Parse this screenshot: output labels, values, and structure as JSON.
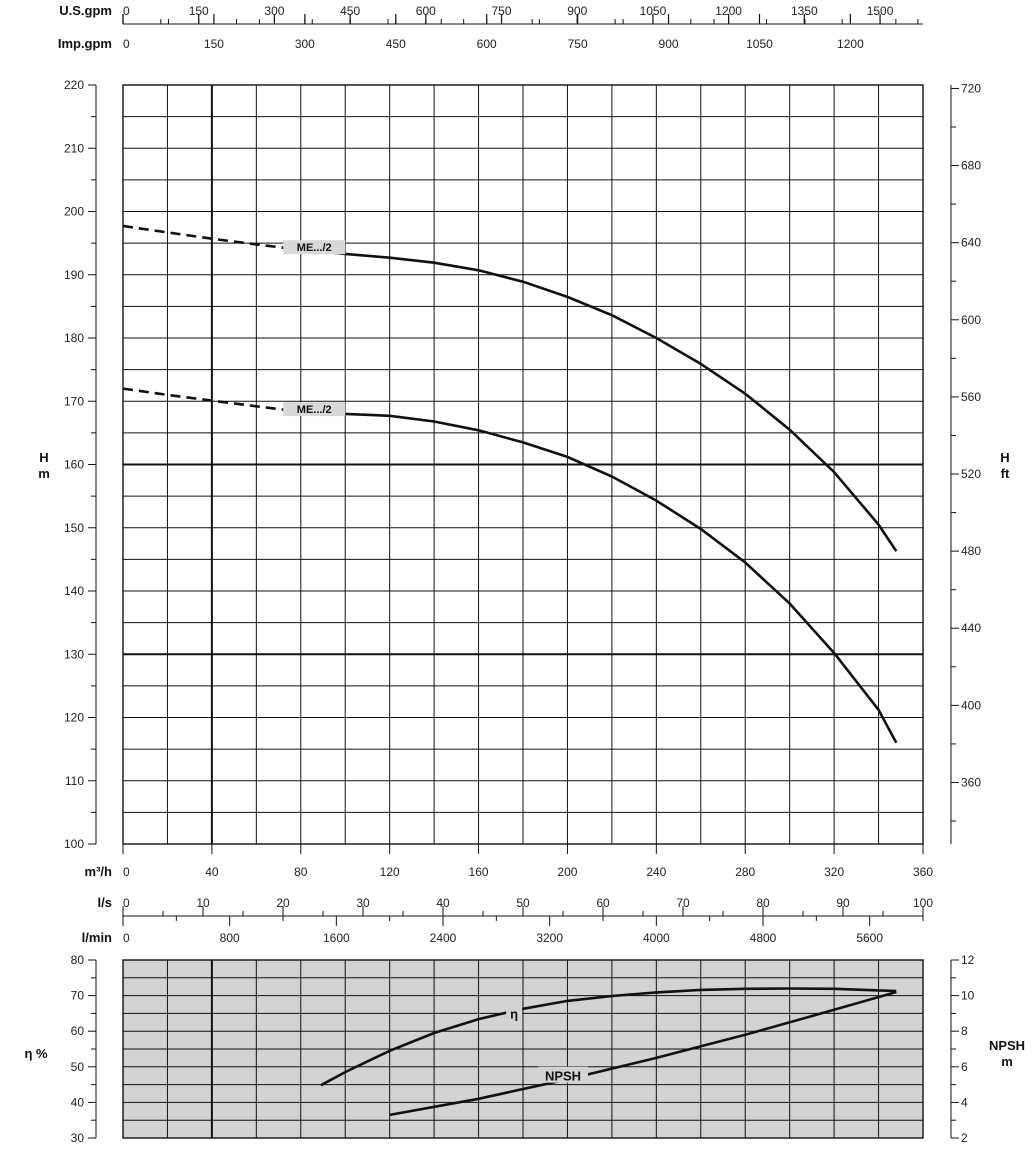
{
  "chart_data": {
    "type": "line",
    "top_axes": [
      {
        "label": "U.S.gpm",
        "ticks": [
          "0",
          "150",
          "300",
          "450",
          "600",
          "750",
          "900",
          "1050",
          "1200",
          "1350",
          "1500"
        ],
        "values": [
          0,
          150,
          300,
          450,
          600,
          750,
          900,
          1050,
          1200,
          1350,
          1500
        ]
      },
      {
        "label": "Imp.gpm",
        "ticks": [
          "0",
          "150",
          "300",
          "450",
          "600",
          "750",
          "900",
          "1050",
          "1200"
        ],
        "values": [
          0,
          150,
          300,
          450,
          600,
          750,
          900,
          1050,
          1200
        ]
      }
    ],
    "x_main": {
      "label": "m³/h",
      "ticks": [
        "0",
        "40",
        "80",
        "120",
        "160",
        "200",
        "240",
        "280",
        "320",
        "360"
      ],
      "values": [
        0,
        40,
        80,
        120,
        160,
        200,
        240,
        280,
        320,
        360
      ],
      "range": [
        0,
        360
      ]
    },
    "x_ls": {
      "label": "l/s",
      "ticks": [
        "0",
        "10",
        "20",
        "30",
        "40",
        "50",
        "60",
        "70",
        "80",
        "90",
        "100"
      ],
      "values": [
        0,
        10,
        20,
        30,
        40,
        50,
        60,
        70,
        80,
        90,
        100
      ]
    },
    "x_lmin": {
      "label": "l/min",
      "ticks": [
        "0",
        "800",
        "1600",
        "2400",
        "3200",
        "4000",
        "4800",
        "5600"
      ],
      "values": [
        0,
        800,
        1600,
        2400,
        3200,
        4000,
        4800,
        5600
      ]
    },
    "head": {
      "ylabel_left": [
        "H",
        "m"
      ],
      "ylabel_right": [
        "H",
        "ft"
      ],
      "ylim": [
        100,
        220
      ],
      "yticks": [
        "100",
        "110",
        "120",
        "130",
        "140",
        "150",
        "160",
        "170",
        "180",
        "190",
        "200",
        "210",
        "220"
      ],
      "yticks_values": [
        100,
        110,
        120,
        130,
        140,
        150,
        160,
        170,
        180,
        190,
        200,
        210,
        220
      ],
      "ft_ticks": [
        "360",
        "400",
        "440",
        "480",
        "520",
        "560",
        "600",
        "640",
        "680",
        "720"
      ],
      "ft_values": [
        360,
        400,
        440,
        480,
        520,
        560,
        600,
        640,
        680,
        720
      ],
      "series": [
        {
          "name": "ME.../2",
          "dashed_to": 74,
          "x": [
            0,
            20,
            40,
            60,
            74,
            100,
            120,
            140,
            160,
            180,
            200,
            220,
            240,
            260,
            280,
            300,
            320,
            340,
            348
          ],
          "y": [
            197.7,
            196.7,
            195.7,
            194.8,
            194.2,
            193.3,
            192.7,
            191.9,
            190.7,
            188.9,
            186.5,
            183.6,
            180.0,
            175.9,
            171.2,
            165.5,
            158.8,
            150.5,
            146.3
          ]
        },
        {
          "name": "ME.../2",
          "dashed_to": 74,
          "x": [
            0,
            20,
            40,
            60,
            74,
            100,
            120,
            140,
            160,
            180,
            200,
            220,
            240,
            260,
            280,
            300,
            320,
            340,
            348
          ],
          "y": [
            172.0,
            171.0,
            170.1,
            169.2,
            168.6,
            168.0,
            167.7,
            166.8,
            165.4,
            163.5,
            161.2,
            158.1,
            154.3,
            149.8,
            144.5,
            138.0,
            130.2,
            121.2,
            116.0
          ]
        }
      ]
    },
    "efficiency": {
      "ylabel_left": "η %",
      "ylabel_right": [
        "NPSH",
        "m"
      ],
      "ylim": [
        30,
        80
      ],
      "yticks": [
        "30",
        "40",
        "50",
        "60",
        "70",
        "80"
      ],
      "yticks_values": [
        30,
        40,
        50,
        60,
        70,
        80
      ],
      "npsh_ticks": [
        "2",
        "4",
        "6",
        "8",
        "10",
        "12"
      ],
      "npsh_values": [
        2,
        4,
        6,
        8,
        10,
        12
      ],
      "series": [
        {
          "name": "η",
          "x": [
            89,
            100,
            120,
            140,
            160,
            180,
            200,
            220,
            240,
            260,
            280,
            300,
            320,
            348
          ],
          "y": [
            44.8,
            48.5,
            54.5,
            59.5,
            63.4,
            66.3,
            68.5,
            69.9,
            70.9,
            71.6,
            71.9,
            72.0,
            71.9,
            71.3
          ]
        },
        {
          "name": "NPSH",
          "x": [
            120,
            160,
            200,
            240,
            280,
            320,
            348
          ],
          "y": [
            3.3,
            4.2,
            5.3,
            6.5,
            7.8,
            9.2,
            10.2
          ]
        }
      ]
    }
  }
}
